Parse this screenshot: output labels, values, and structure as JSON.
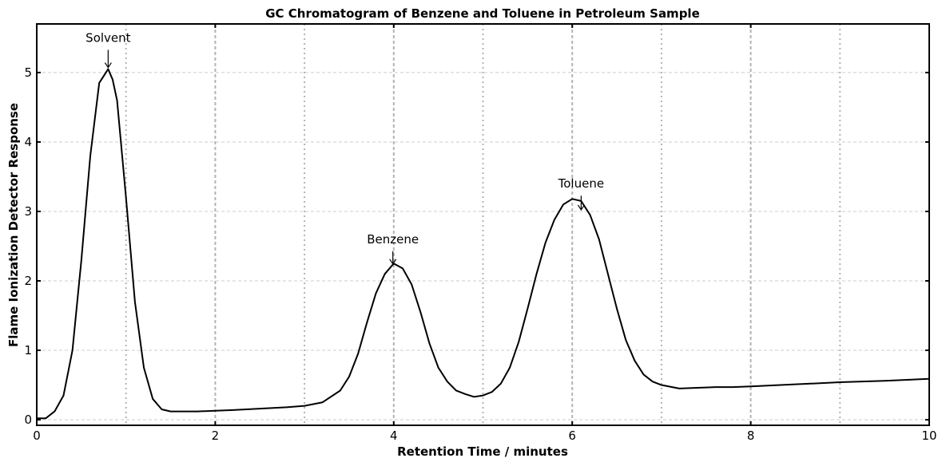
{
  "chart_data": {
    "type": "line",
    "title": "GC Chromatogram of Benzene and Toluene in Petroleum Sample",
    "xlabel": "Retention Time / minutes",
    "ylabel": "Flame Ionization Detector Response",
    "xlim": [
      0,
      10
    ],
    "ylim": [
      -0.08,
      5.7
    ],
    "xticks": [
      0,
      2,
      4,
      6,
      8,
      10
    ],
    "yticks": [
      0,
      1,
      2,
      3,
      4,
      5
    ],
    "grid": true,
    "minor_vertical_grid": [
      1,
      3,
      5,
      7,
      9
    ],
    "series": [
      {
        "color": "#000000",
        "x": [
          0.0,
          0.1,
          0.2,
          0.3,
          0.4,
          0.5,
          0.6,
          0.7,
          0.8,
          0.85,
          0.9,
          1.0,
          1.1,
          1.2,
          1.3,
          1.4,
          1.5,
          1.6,
          1.8,
          2.0,
          2.2,
          2.5,
          2.8,
          3.0,
          3.2,
          3.4,
          3.5,
          3.6,
          3.7,
          3.8,
          3.9,
          4.0,
          4.1,
          4.2,
          4.3,
          4.4,
          4.5,
          4.6,
          4.7,
          4.8,
          4.9,
          5.0,
          5.1,
          5.2,
          5.3,
          5.4,
          5.5,
          5.6,
          5.7,
          5.8,
          5.9,
          6.0,
          6.1,
          6.2,
          6.3,
          6.4,
          6.5,
          6.6,
          6.7,
          6.8,
          6.9,
          7.0,
          7.2,
          7.4,
          7.6,
          7.8,
          8.0,
          8.5,
          9.0,
          9.5,
          10.0
        ],
        "y": [
          0.02,
          0.02,
          0.12,
          0.35,
          1.0,
          2.3,
          3.8,
          4.85,
          5.05,
          4.9,
          4.6,
          3.2,
          1.7,
          0.75,
          0.3,
          0.15,
          0.12,
          0.12,
          0.12,
          0.13,
          0.14,
          0.16,
          0.18,
          0.2,
          0.25,
          0.42,
          0.62,
          0.95,
          1.4,
          1.82,
          2.1,
          2.25,
          2.18,
          1.95,
          1.55,
          1.1,
          0.75,
          0.55,
          0.42,
          0.37,
          0.33,
          0.35,
          0.4,
          0.52,
          0.75,
          1.12,
          1.6,
          2.1,
          2.55,
          2.88,
          3.1,
          3.18,
          3.15,
          2.95,
          2.6,
          2.1,
          1.6,
          1.15,
          0.85,
          0.65,
          0.55,
          0.5,
          0.45,
          0.46,
          0.47,
          0.47,
          0.48,
          0.51,
          0.54,
          0.56,
          0.59
        ]
      }
    ],
    "annotations": [
      {
        "text": "Solvent",
        "x": 0.8,
        "y": 5.05,
        "text_y": 5.35
      },
      {
        "text": "Benzene",
        "x": 3.99,
        "y": 2.22,
        "text_y": 2.45
      },
      {
        "text": "Toluene",
        "x": 6.1,
        "y": 3.0,
        "text_y": 3.25
      }
    ]
  }
}
